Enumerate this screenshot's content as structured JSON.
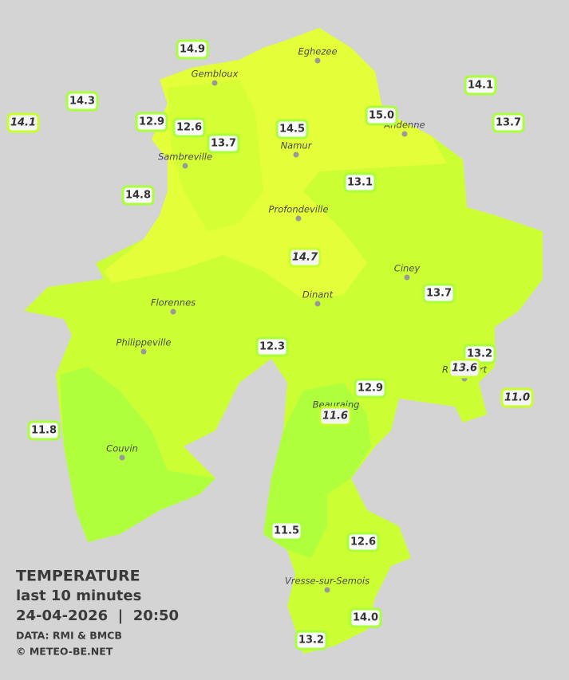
{
  "legend": {
    "title": "TEMPERATURE",
    "period": "last 10 minutes",
    "datetime": "24-04-2026  |  20:50",
    "source": "DATA: RMI & BMCB",
    "copyright": "© METEO-BE.NET"
  },
  "cities": [
    "Eghezee",
    "Gembloux",
    "Andenne",
    "Namur",
    "Sambreville",
    "Profondeville",
    "Ciney",
    "Dinant",
    "Florennes",
    "Philippeville",
    "Rochefort",
    "Beauraing",
    "Couvin",
    "Vresse-sur-Semois"
  ],
  "readings": [
    "14.9",
    "14.3",
    "14.1",
    "12.9",
    "12.6",
    "13.7",
    "14.5",
    "15.0",
    "14.1",
    "13.7",
    "14.8",
    "13.1",
    "14.7",
    "13.7",
    "12.3",
    "13.2",
    "13.6",
    "12.9",
    "11.0",
    "11.6",
    "11.8",
    "11.5",
    "12.6",
    "14.0",
    "13.2"
  ]
}
